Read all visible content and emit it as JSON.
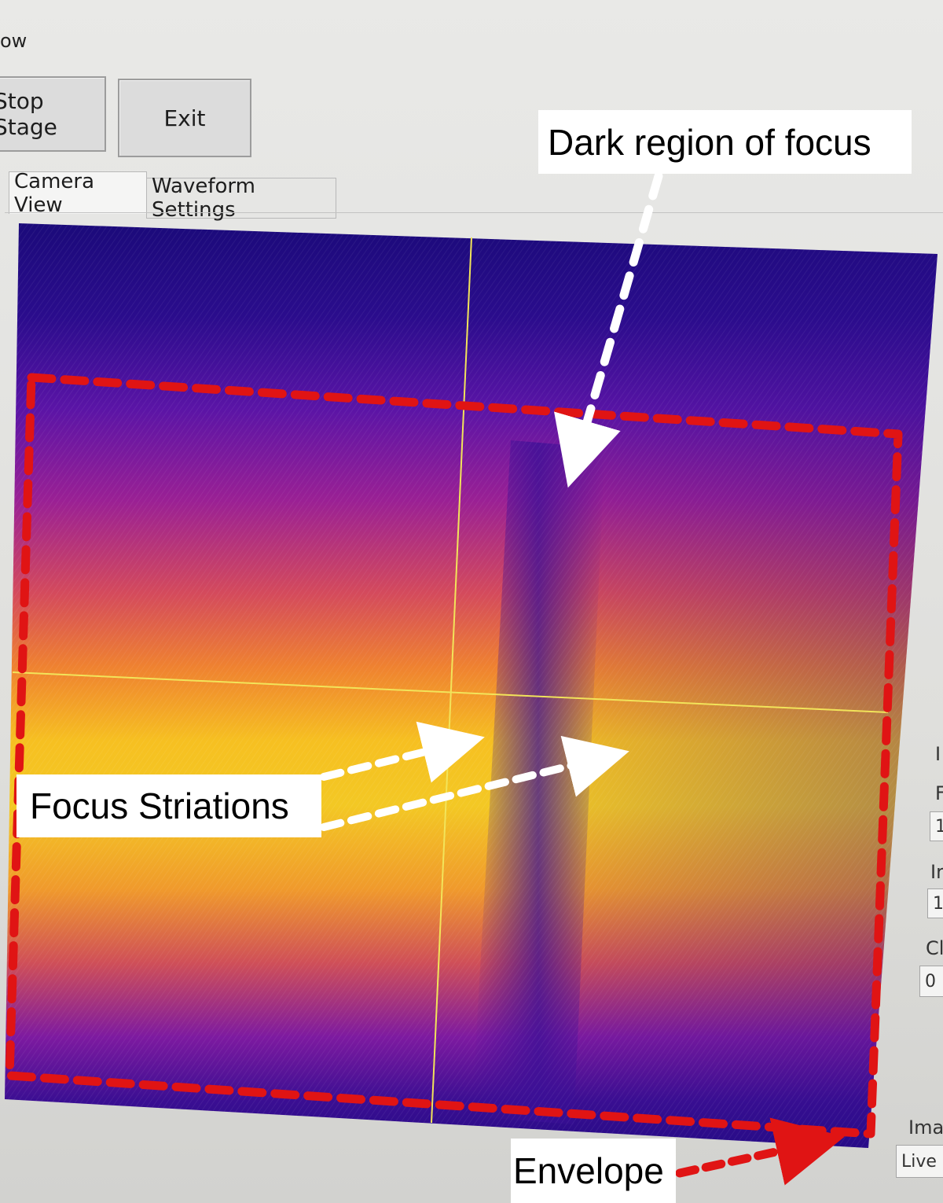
{
  "app": {
    "menu_fragment": "ow"
  },
  "toolbar": {
    "stop_stage_label": "Stop Stage",
    "exit_label": "Exit"
  },
  "tabs": [
    {
      "label": "Camera View",
      "active": true
    },
    {
      "label": "Waveform Settings",
      "active": false
    }
  ],
  "camera_view": {
    "colormap": [
      "#1a0a78",
      "#5b13a8",
      "#9a1f9c",
      "#d8405c",
      "#f07a2c",
      "#f6b623",
      "#f7d81e"
    ],
    "crosshair_color": "#f2e45a"
  },
  "side_panel": {
    "labels": [
      "I",
      "F",
      "Ir",
      "Cl",
      "Ima"
    ],
    "fields": [
      "1",
      "1",
      "0"
    ],
    "mode_value": "Live"
  },
  "annotations": {
    "dark_region": "Dark region of focus",
    "striations": "Focus Striations",
    "envelope": "Envelope",
    "arrow_color": "#ffffff",
    "envelope_color": "#e01414"
  }
}
